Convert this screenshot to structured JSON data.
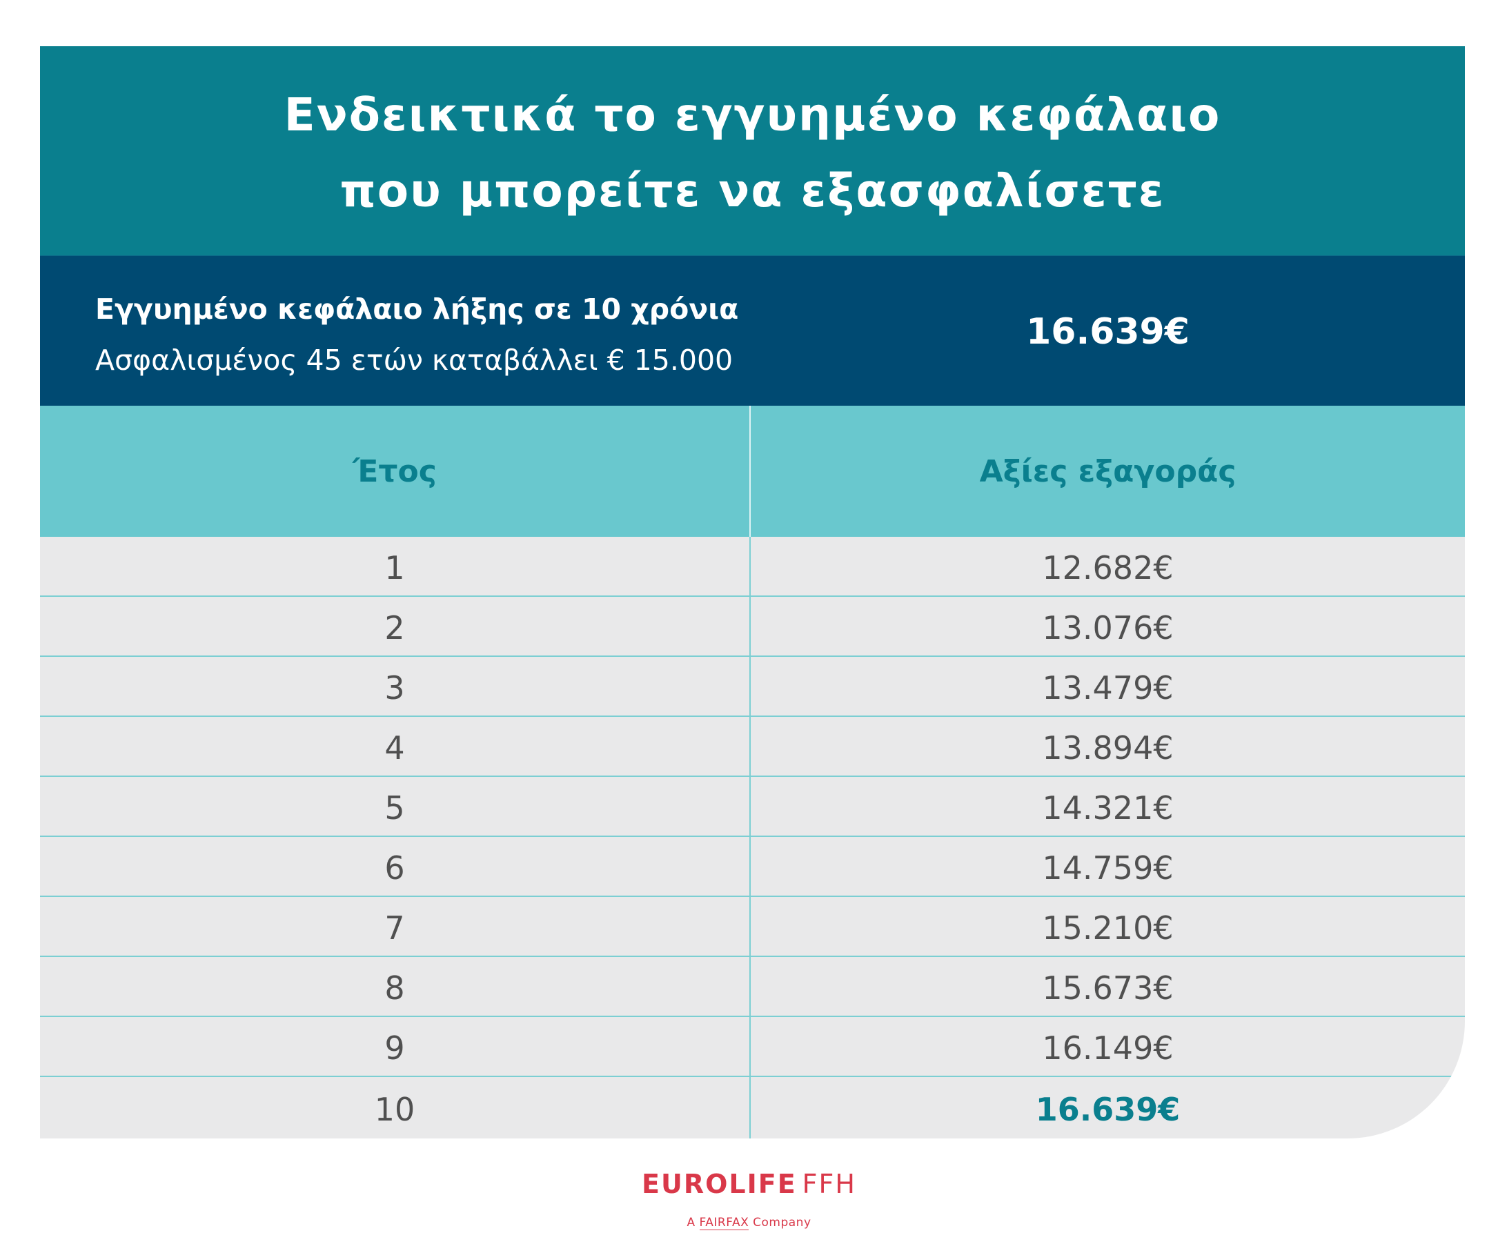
{
  "title": {
    "line1": "Ενδεικτικά το εγγυημένο κεφάλαιο",
    "line2": "που μπορείτε να εξασφαλίσετε"
  },
  "summary": {
    "label": "Εγγυημένο κεφάλαιο λήξης σε 10 χρόνια",
    "note": "Ασφαλισμένος 45 ετών καταβάλλει € 15.000",
    "value": "16.639€"
  },
  "table": {
    "headers": {
      "year": "Έτος",
      "value": "Αξίες εξαγοράς"
    },
    "rows": [
      {
        "year": "1",
        "value": "12.682€"
      },
      {
        "year": "2",
        "value": "13.076€"
      },
      {
        "year": "3",
        "value": "13.479€"
      },
      {
        "year": "4",
        "value": "13.894€"
      },
      {
        "year": "5",
        "value": "14.321€"
      },
      {
        "year": "6",
        "value": "14.759€"
      },
      {
        "year": "7",
        "value": "15.210€"
      },
      {
        "year": "8",
        "value": "15.673€"
      },
      {
        "year": "9",
        "value": "16.149€"
      },
      {
        "year": "10",
        "value": "16.639€"
      }
    ],
    "highlight_row": 9
  },
  "logo": {
    "brand": "EUROLIFE",
    "suffix": "FFH",
    "tagline_prefix": "A",
    "tagline_company": "FAIRFAX",
    "tagline_suffix": "Company"
  },
  "colors": {
    "title_band": "#0a7f8e",
    "summary_band": "#004a72",
    "header_band": "#69c8ce",
    "row_background": "#e9e9ea",
    "accent_text": "#0a7f8e",
    "brand_red": "#d93849"
  }
}
